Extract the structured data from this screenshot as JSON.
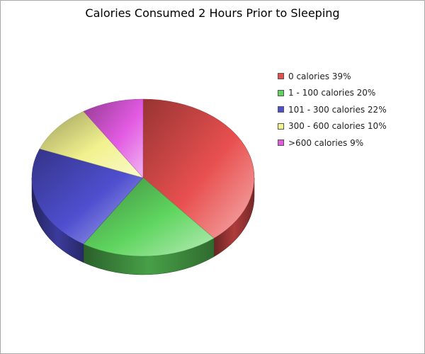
{
  "chart_data": {
    "type": "pie",
    "title": "Calories Consumed 2 Hours Prior to Sleeping",
    "legend_position": "right",
    "slices": [
      {
        "label": "0 calories 39%",
        "value": 39,
        "color": "#e8504f"
      },
      {
        "label": "1 - 100 calories 20%",
        "value": 20,
        "color": "#5fd55f"
      },
      {
        "label": "101 - 300 calories 22%",
        "value": 22,
        "color": "#4f4fd0"
      },
      {
        "label": "300 - 600 calories 10%",
        "value": 10,
        "color": "#f2f28f"
      },
      {
        "label": ">600 calories 9%",
        "value": 9,
        "color": "#e25ae2"
      }
    ]
  }
}
